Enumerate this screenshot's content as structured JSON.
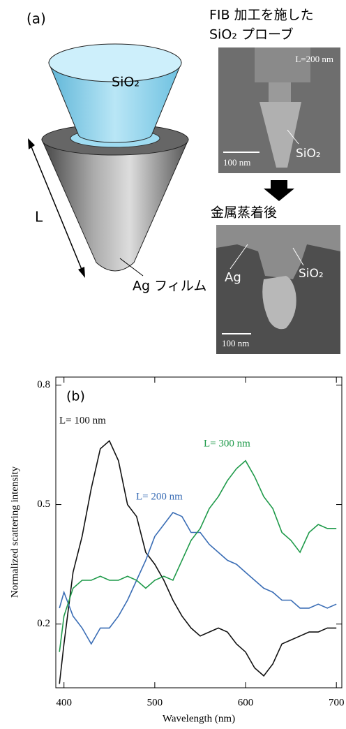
{
  "panel_a": {
    "label": "(a)",
    "cone_core_label": "SiO₂",
    "length_label": "L",
    "film_label": "Ag フィルム",
    "sem_before": {
      "title_line1": "FIB 加工を施した",
      "title_line2": "SiO₂ プローブ",
      "length": "L=200 nm",
      "scale": "100 nm",
      "core": "SiO₂"
    },
    "step_label": "金属蒸着後",
    "sem_after": {
      "film": "Ag",
      "core": "SiO₂",
      "scale": "100 nm"
    }
  },
  "chart_data": {
    "type": "line",
    "panel_label": "(b)",
    "x_label": "Wavelength (nm)",
    "y_label": "Normalized scattering intensity",
    "x": [
      395,
      400,
      410,
      420,
      430,
      440,
      450,
      460,
      470,
      480,
      490,
      500,
      510,
      520,
      530,
      540,
      550,
      560,
      570,
      580,
      590,
      600,
      610,
      620,
      630,
      640,
      650,
      660,
      670,
      680,
      690,
      700
    ],
    "series": [
      {
        "name": "L= 100 nm",
        "color": "#111111",
        "values": [
          0.05,
          0.15,
          0.33,
          0.42,
          0.54,
          0.64,
          0.66,
          0.61,
          0.5,
          0.47,
          0.38,
          0.35,
          0.31,
          0.26,
          0.22,
          0.19,
          0.17,
          0.18,
          0.19,
          0.18,
          0.15,
          0.13,
          0.09,
          0.07,
          0.1,
          0.15,
          0.16,
          0.17,
          0.18,
          0.18,
          0.19,
          0.19
        ]
      },
      {
        "name": "L= 200 nm",
        "color": "#3a6db5",
        "values": [
          0.24,
          0.28,
          0.22,
          0.19,
          0.15,
          0.19,
          0.19,
          0.22,
          0.26,
          0.31,
          0.36,
          0.42,
          0.45,
          0.48,
          0.47,
          0.43,
          0.43,
          0.4,
          0.38,
          0.36,
          0.35,
          0.33,
          0.31,
          0.29,
          0.28,
          0.26,
          0.26,
          0.24,
          0.24,
          0.25,
          0.24,
          0.25
        ]
      },
      {
        "name": "L= 300 nm",
        "color": "#1f9a4a",
        "values": [
          0.13,
          0.22,
          0.29,
          0.31,
          0.31,
          0.32,
          0.31,
          0.31,
          0.32,
          0.31,
          0.29,
          0.31,
          0.32,
          0.31,
          0.36,
          0.41,
          0.44,
          0.49,
          0.52,
          0.56,
          0.59,
          0.61,
          0.57,
          0.52,
          0.49,
          0.43,
          0.41,
          0.38,
          0.43,
          0.45,
          0.44,
          0.44
        ]
      }
    ],
    "xlim": [
      391,
      706
    ],
    "ylim": [
      0.04,
      0.82
    ],
    "xticks": [
      400,
      500,
      600,
      700
    ],
    "yticks": [
      0.2,
      0.5,
      0.8
    ]
  }
}
